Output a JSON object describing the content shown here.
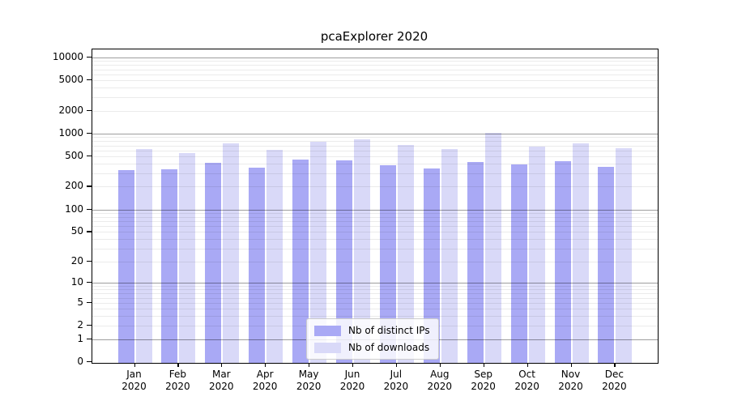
{
  "title": "pcaExplorer 2020",
  "chart_data": {
    "type": "bar",
    "title": "pcaExplorer 2020",
    "categories": [
      "Jan",
      "Feb",
      "Mar",
      "Apr",
      "May",
      "Jun",
      "Jul",
      "Aug",
      "Sep",
      "Oct",
      "Nov",
      "Dec"
    ],
    "x_tick_second_line": "2020",
    "series": [
      {
        "name": "Nb of distinct IPs",
        "color": "#a9a9f5",
        "values": [
          335,
          340,
          415,
          360,
          455,
          445,
          380,
          350,
          425,
          390,
          430,
          365
        ]
      },
      {
        "name": "Nb of downloads",
        "color": "#d9d9f8",
        "values": [
          620,
          560,
          750,
          610,
          775,
          840,
          705,
          630,
          1015,
          670,
          750,
          635
        ]
      }
    ],
    "y_scale": "log10(value+1)",
    "y_ticks": [
      0,
      1,
      2,
      5,
      10,
      20,
      50,
      100,
      200,
      500,
      1000,
      2000,
      5000,
      10000
    ],
    "ylim": [
      0,
      12800
    ],
    "xlabel": "",
    "ylabel": "",
    "grid": "horizontal, majors at powers of 10, light minors at 2-9 multiples",
    "legend_position": "inside lower-center",
    "colors": {
      "bar_ips": "#a9a9f5",
      "bar_downloads": "#d9d9f8",
      "spine": "#000000",
      "major_grid": "#9e9e9e",
      "minor_grid": "#ededed",
      "background": "#ffffff"
    }
  }
}
